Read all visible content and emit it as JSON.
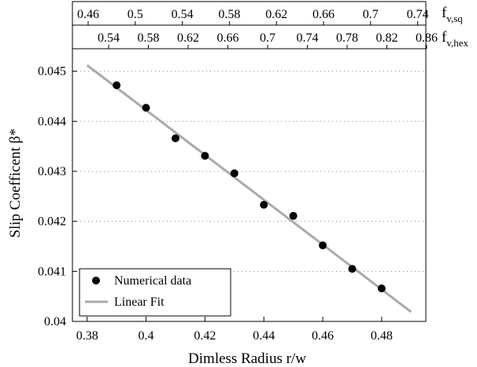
{
  "chart_data": {
    "type": "scatter",
    "xlabel": "Dimless Radius r/w",
    "ylabel": "Slip Coefficent β*",
    "xlim": [
      0.375,
      0.495
    ],
    "ylim": [
      0.04,
      0.04545
    ],
    "x_ticks": [
      "0.38",
      "0.4",
      "0.42",
      "0.44",
      "0.46",
      "0.48"
    ],
    "y_ticks": [
      "0.04",
      "0.041",
      "0.042",
      "0.043",
      "0.044",
      "0.045"
    ],
    "grid": "horizontal-dotted",
    "legend_position": "bottom-left",
    "top_axis_sq": {
      "label_main": "f",
      "label_sub": "v,sq",
      "ticks": [
        "0.46",
        "0.5",
        "0.54",
        "0.58",
        "0.62",
        "0.66",
        "0.7",
        "0.74"
      ]
    },
    "top_axis_hex": {
      "label_main": "f",
      "label_sub": "v,hex",
      "ticks": [
        "0.54",
        "0.58",
        "0.62",
        "0.66",
        "0.7",
        "0.74",
        "0.78",
        "0.82",
        "0.86"
      ]
    },
    "series": [
      {
        "name": "Numerical data",
        "kind": "scatter",
        "color": "#000000",
        "x": [
          0.39,
          0.4,
          0.41,
          0.42,
          0.43,
          0.44,
          0.45,
          0.46,
          0.47,
          0.48
        ],
        "y": [
          0.04472,
          0.04427,
          0.04366,
          0.04331,
          0.04296,
          0.04233,
          0.04211,
          0.04152,
          0.04105,
          0.04066
        ]
      },
      {
        "name": "Linear Fit",
        "kind": "line",
        "color": "#aaaaaa",
        "x": [
          0.38,
          0.49
        ],
        "y": [
          0.04512,
          0.04019
        ]
      }
    ]
  }
}
